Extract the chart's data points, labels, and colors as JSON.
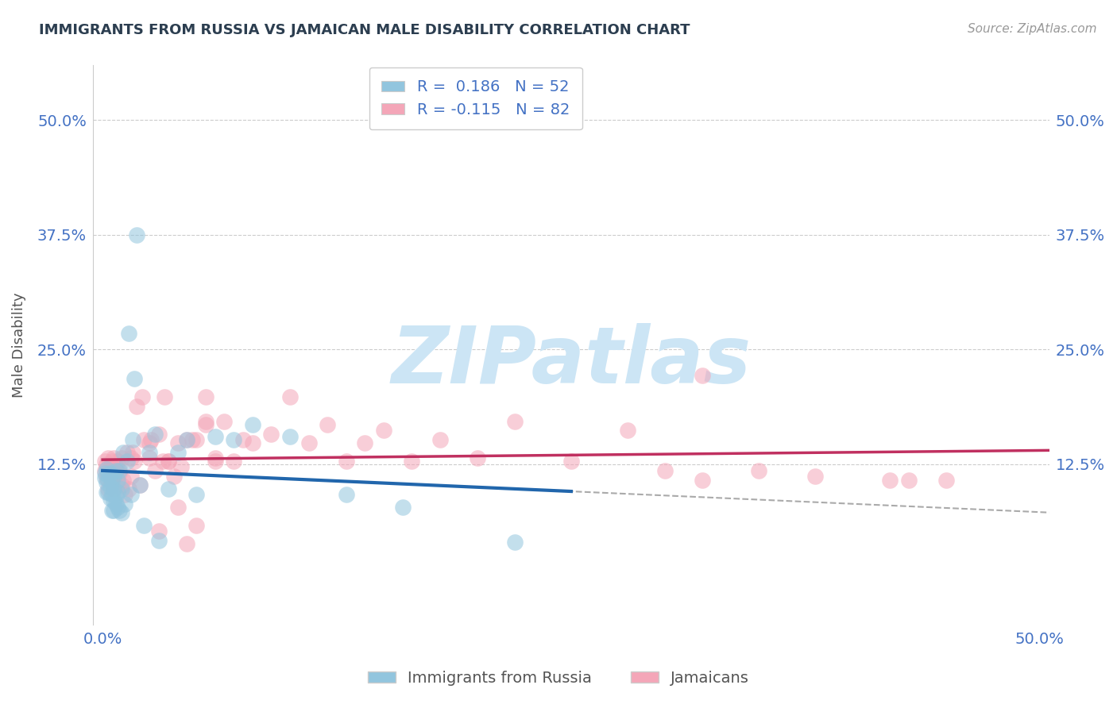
{
  "title": "IMMIGRANTS FROM RUSSIA VS JAMAICAN MALE DISABILITY CORRELATION CHART",
  "source": "Source: ZipAtlas.com",
  "ylabel": "Male Disability",
  "ytick_labels": [
    "12.5%",
    "25.0%",
    "37.5%",
    "50.0%"
  ],
  "ytick_values": [
    0.125,
    0.25,
    0.375,
    0.5
  ],
  "xlim": [
    -0.005,
    0.505
  ],
  "ylim": [
    -0.05,
    0.56
  ],
  "R_blue": "0.186",
  "N_blue": "52",
  "R_pink": "-0.115",
  "N_pink": "82",
  "blue_fill": "#92c5de",
  "pink_fill": "#f4a6b8",
  "blue_line": "#2166ac",
  "pink_line": "#c03060",
  "dash_color": "#aaaaaa",
  "text_color": "#2c3e50",
  "axis_label_color": "#4472c4",
  "grid_color": "#cccccc",
  "watermark_color": "#cce5f5",
  "source_color": "#999999",
  "blue_x": [
    0.001,
    0.001,
    0.002,
    0.002,
    0.002,
    0.003,
    0.003,
    0.003,
    0.004,
    0.004,
    0.004,
    0.005,
    0.005,
    0.005,
    0.006,
    0.006,
    0.006,
    0.006,
    0.007,
    0.007,
    0.007,
    0.008,
    0.008,
    0.008,
    0.009,
    0.009,
    0.01,
    0.01,
    0.011,
    0.012,
    0.013,
    0.014,
    0.015,
    0.016,
    0.017,
    0.018,
    0.02,
    0.022,
    0.025,
    0.028,
    0.03,
    0.035,
    0.04,
    0.045,
    0.05,
    0.06,
    0.07,
    0.08,
    0.1,
    0.13,
    0.16,
    0.22
  ],
  "blue_y": [
    0.115,
    0.11,
    0.12,
    0.105,
    0.095,
    0.113,
    0.095,
    0.108,
    0.1,
    0.115,
    0.088,
    0.092,
    0.108,
    0.075,
    0.098,
    0.112,
    0.085,
    0.075,
    0.09,
    0.082,
    0.118,
    0.078,
    0.095,
    0.108,
    0.075,
    0.118,
    0.072,
    0.098,
    0.138,
    0.082,
    0.128,
    0.268,
    0.092,
    0.152,
    0.218,
    0.375,
    0.102,
    0.058,
    0.138,
    0.158,
    0.042,
    0.098,
    0.138,
    0.152,
    0.092,
    0.155,
    0.152,
    0.168,
    0.155,
    0.092,
    0.078,
    0.04
  ],
  "pink_x": [
    0.001,
    0.001,
    0.002,
    0.002,
    0.003,
    0.003,
    0.004,
    0.004,
    0.005,
    0.005,
    0.005,
    0.006,
    0.006,
    0.007,
    0.007,
    0.008,
    0.008,
    0.009,
    0.009,
    0.01,
    0.01,
    0.011,
    0.012,
    0.013,
    0.014,
    0.015,
    0.015,
    0.016,
    0.017,
    0.018,
    0.02,
    0.021,
    0.022,
    0.025,
    0.026,
    0.028,
    0.03,
    0.032,
    0.033,
    0.035,
    0.038,
    0.04,
    0.042,
    0.045,
    0.048,
    0.05,
    0.055,
    0.06,
    0.065,
    0.07,
    0.075,
    0.08,
    0.09,
    0.1,
    0.11,
    0.12,
    0.13,
    0.14,
    0.15,
    0.165,
    0.18,
    0.2,
    0.22,
    0.25,
    0.28,
    0.3,
    0.32,
    0.35,
    0.38,
    0.42,
    0.45,
    0.025,
    0.03,
    0.035,
    0.04,
    0.045,
    0.05,
    0.055,
    0.06,
    0.32,
    0.055,
    0.43
  ],
  "pink_y": [
    0.128,
    0.118,
    0.125,
    0.11,
    0.132,
    0.098,
    0.122,
    0.112,
    0.108,
    0.128,
    0.115,
    0.132,
    0.098,
    0.118,
    0.122,
    0.128,
    0.102,
    0.115,
    0.122,
    0.102,
    0.132,
    0.108,
    0.092,
    0.138,
    0.098,
    0.112,
    0.132,
    0.138,
    0.128,
    0.188,
    0.102,
    0.198,
    0.152,
    0.148,
    0.152,
    0.118,
    0.158,
    0.128,
    0.198,
    0.128,
    0.112,
    0.148,
    0.122,
    0.152,
    0.152,
    0.152,
    0.172,
    0.132,
    0.172,
    0.128,
    0.152,
    0.148,
    0.158,
    0.198,
    0.148,
    0.168,
    0.128,
    0.148,
    0.162,
    0.128,
    0.152,
    0.132,
    0.172,
    0.128,
    0.162,
    0.118,
    0.108,
    0.118,
    0.112,
    0.108,
    0.108,
    0.132,
    0.052,
    0.128,
    0.078,
    0.038,
    0.058,
    0.198,
    0.128,
    0.222,
    0.168,
    0.108
  ]
}
